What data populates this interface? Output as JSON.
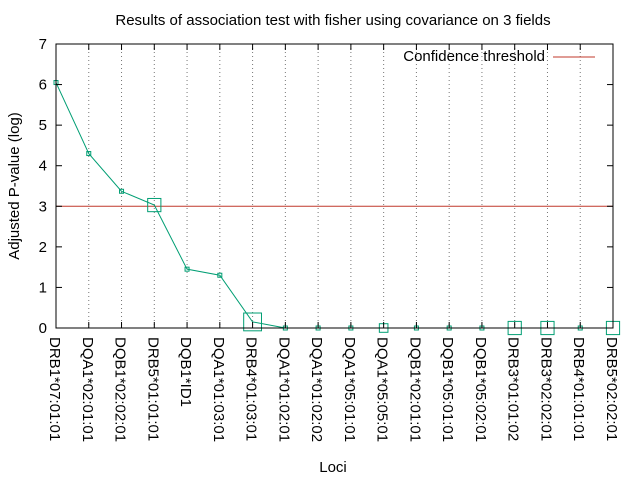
{
  "chart_data": {
    "type": "line",
    "title": "Results of association test with fisher using covariance on 3 fields",
    "xlabel": "Loci",
    "ylabel": "Adjusted P-value (log)",
    "ylim": [
      0,
      7
    ],
    "yticks": [
      0,
      1,
      2,
      3,
      4,
      5,
      6,
      7
    ],
    "grid": "vertical dotted at each category",
    "categories": [
      "DRB1*07:01:01",
      "DQA1*02:01:01",
      "DQB1*02:02:01",
      "DRB5*01:01:01",
      "DQB1*ID1",
      "DQA1*01:03:01",
      "DRB4*01:03:01",
      "DQA1*01:02:01",
      "DQA1*01:02:02",
      "DQA1*05:01:01",
      "DQA1*05:05:01",
      "DQB1*02:01:01",
      "DQB1*05:01:01",
      "DQB1*05:02:01",
      "DRB3*01:01:02",
      "DRB3*02:02:01",
      "DRB4*01:01:01",
      "DRB5*02:02:01"
    ],
    "series": [
      {
        "values": [
          6.05,
          4.3,
          3.37,
          3.03,
          1.45,
          1.3,
          0.15,
          0.0,
          0.0,
          0.0,
          0.0,
          0.0,
          0.0,
          0.0,
          0.0,
          0.0,
          0.0,
          0.0
        ],
        "marker_weight": [
          1,
          1,
          1,
          3,
          1,
          1,
          4,
          1,
          1,
          1,
          2,
          1,
          1,
          1,
          3,
          3,
          1,
          3
        ],
        "color": "#009e73",
        "marker": "open-square"
      }
    ],
    "threshold": {
      "name": "Confidence threshold",
      "value": 3,
      "color": "#c0392b"
    },
    "legend_position": "top-right"
  }
}
